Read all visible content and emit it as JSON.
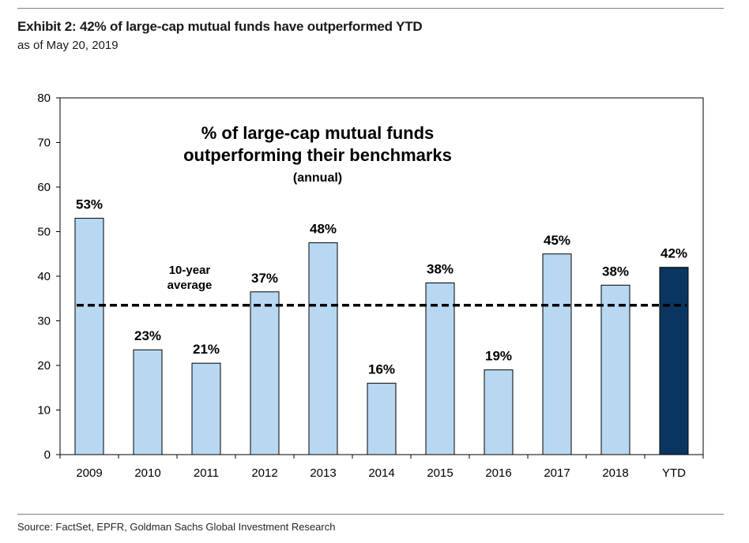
{
  "header": {
    "title": "Exhibit 2: 42% of large-cap mutual funds have outperformed YTD",
    "subtitle": "as of May 20, 2019"
  },
  "footer": {
    "source": "Source: FactSet, EPFR, Goldman Sachs Global Investment Research"
  },
  "chart_data": {
    "type": "bar",
    "title_lines": [
      "% of large-cap mutual funds",
      "outperforming their benchmarks"
    ],
    "subtitle": "(annual)",
    "categories": [
      "2009",
      "2010",
      "2011",
      "2012",
      "2013",
      "2014",
      "2015",
      "2016",
      "2017",
      "2018",
      "YTD"
    ],
    "values": [
      53,
      23.5,
      20.5,
      36.5,
      47.5,
      16,
      38.5,
      19,
      45,
      38,
      42
    ],
    "data_labels": [
      "53%",
      "23%",
      "21%",
      "37%",
      "48%",
      "16%",
      "38%",
      "19%",
      "45%",
      "38%",
      "42%"
    ],
    "ylim": [
      0,
      80
    ],
    "yticks": [
      0,
      10,
      20,
      30,
      40,
      50,
      60,
      70,
      80
    ],
    "bar_color": "#b8d8f2",
    "highlight_color": "#0a3560",
    "highlight_category": "YTD",
    "reference_line": {
      "value": 33.5,
      "label_lines": [
        "10-year",
        "average"
      ],
      "style": "dashed"
    },
    "grid": false,
    "legend": "none"
  }
}
